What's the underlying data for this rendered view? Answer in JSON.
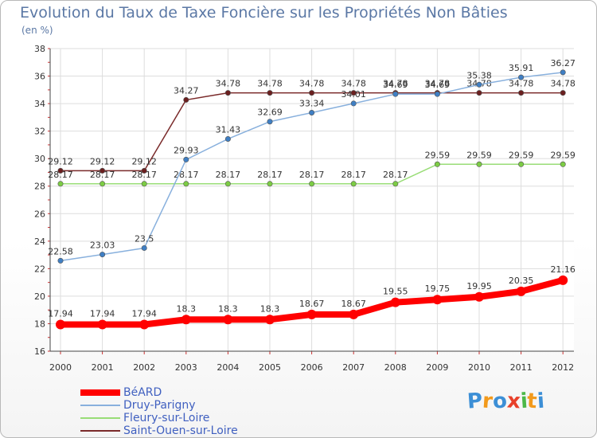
{
  "title": "Evolution du Taux de Taxe Foncière sur les Propriétés Non Bâties",
  "unit": "(en %)",
  "logo": {
    "text": "Proxiti",
    "letters": [
      "P",
      "r",
      "o",
      "x",
      "i",
      "t",
      "i"
    ],
    "colors": [
      "#3c8fd6",
      "#f29a1c",
      "#3c8fd6",
      "#e8402a",
      "#4cb848",
      "#f29a1c",
      "#3c8fd6"
    ]
  },
  "chart_data": {
    "type": "line",
    "title": "Evolution du Taux de Taxe Foncière sur les Propriétés Non Bâties",
    "ylabel": "(en %)",
    "xlabel": "",
    "ylim": [
      16,
      38
    ],
    "yticks": [
      16,
      18,
      20,
      22,
      24,
      26,
      28,
      30,
      32,
      34,
      36,
      38
    ],
    "grid": true,
    "legend_position": "bottom-left",
    "categories": [
      "2000",
      "2001",
      "2002",
      "2003",
      "2004",
      "2005",
      "2006",
      "2007",
      "2008",
      "2009",
      "2010",
      "2011",
      "2012"
    ],
    "series": [
      {
        "name": "Saint-Ouen-sur-Loire",
        "color": "#7a2a2a",
        "point_color": "#6b1f1f",
        "values": [
          29.12,
          29.12,
          29.12,
          34.27,
          34.78,
          34.78,
          34.78,
          34.78,
          34.78,
          34.78,
          34.78,
          34.78,
          34.78
        ],
        "labels": [
          "29.12",
          "29.12",
          "29.12",
          "34.27",
          "34.78",
          "34.78",
          "34.78",
          "34.78",
          "34.78",
          "34.78",
          "34.78",
          "34.78",
          "34.78"
        ]
      },
      {
        "name": "Fleury-sur-Loire",
        "color": "#99dd77",
        "point_color": "#7ccc44",
        "values": [
          28.17,
          28.17,
          28.17,
          28.17,
          28.17,
          28.17,
          28.17,
          28.17,
          28.17,
          29.59,
          29.59,
          29.59,
          29.59
        ],
        "labels": [
          "28.17",
          "28.17",
          "28.17",
          "28.17",
          "28.17",
          "28.17",
          "28.17",
          "28.17",
          "28.17",
          "29.59",
          "29.59",
          "29.59",
          "29.59"
        ]
      },
      {
        "name": "Druy-Parigny",
        "color": "#88b0dd",
        "point_color": "#3f7fc4",
        "values": [
          22.58,
          23.03,
          23.5,
          29.93,
          31.43,
          32.69,
          33.34,
          34.01,
          34.69,
          34.69,
          35.38,
          35.91,
          36.27
        ],
        "labels": [
          "22.58",
          "23.03",
          "23.5",
          "29.93",
          "31.43",
          "32.69",
          "33.34",
          "34.01",
          "34.69",
          "34.69",
          "35.38",
          "35.91",
          "36.27"
        ]
      },
      {
        "name": "BéARD",
        "color": "#ff0000",
        "point_color": "#ff0000",
        "values": [
          17.94,
          17.94,
          17.94,
          18.3,
          18.3,
          18.3,
          18.67,
          18.67,
          19.55,
          19.75,
          19.95,
          20.35,
          21.16
        ],
        "labels": [
          "17.94",
          "17.94",
          "17.94",
          "18.3",
          "18.3",
          "18.3",
          "18.67",
          "18.67",
          "19.55",
          "19.75",
          "19.95",
          "20.35",
          "21.16"
        ]
      }
    ],
    "legend": [
      {
        "name": "BéARD",
        "color": "#ff0000",
        "thick": true
      },
      {
        "name": "Druy-Parigny",
        "color": "#88b0dd",
        "thick": false
      },
      {
        "name": "Fleury-sur-Loire",
        "color": "#99dd77",
        "thick": false
      },
      {
        "name": "Saint-Ouen-sur-Loire",
        "color": "#7a2a2a",
        "thick": false
      }
    ]
  }
}
